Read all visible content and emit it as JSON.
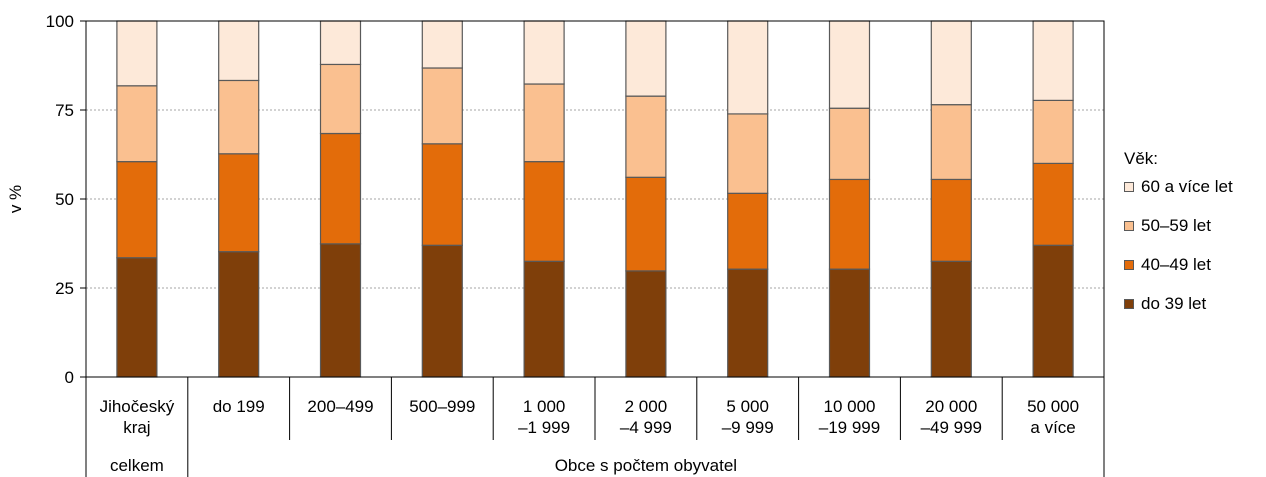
{
  "chart_data": {
    "type": "bar",
    "stacked": true,
    "ylabel": "v %",
    "ylim": [
      0,
      100
    ],
    "yticks": [
      "0",
      "25",
      "50",
      "75",
      "100"
    ],
    "grid": true,
    "legend_title": "Věk:",
    "legend_position": "right",
    "categories": [
      [
        "Jihočeský",
        "kraj"
      ],
      [
        "do 199"
      ],
      [
        "200–499"
      ],
      [
        "500–999"
      ],
      [
        "1 000",
        "–1 999"
      ],
      [
        "2 000",
        "–4 999"
      ],
      [
        "5 000",
        "–9 999"
      ],
      [
        "10 000",
        "–19 999"
      ],
      [
        "20 000",
        "–49 999"
      ],
      [
        "50 000",
        "a více"
      ]
    ],
    "groups": [
      {
        "label": "celkem",
        "span": 1
      },
      {
        "label": "Obce s počtem obyvatel",
        "span": 9
      }
    ],
    "series": [
      {
        "name": "do 39 let",
        "color": "#7f3f0a",
        "values": [
          33.5,
          35.2,
          37.4,
          37,
          32.5,
          29.8,
          30.3,
          30.3,
          32.5,
          37
        ]
      },
      {
        "name": "40–49 let",
        "color": "#e36c0a",
        "values": [
          27,
          27.5,
          31,
          28.5,
          28,
          26.3,
          21.3,
          25.2,
          23,
          23
        ]
      },
      {
        "name": "50–59 let",
        "color": "#fac090",
        "values": [
          21.3,
          20.6,
          19.4,
          21.3,
          21.8,
          22.8,
          22.3,
          20,
          21,
          17.7
        ]
      },
      {
        "name": "60 a více let",
        "color": "#fde9d9",
        "values": [
          18.2,
          16.7,
          12.2,
          13.2,
          17.7,
          21.1,
          26.1,
          24.5,
          23.5,
          22.3
        ]
      }
    ]
  }
}
